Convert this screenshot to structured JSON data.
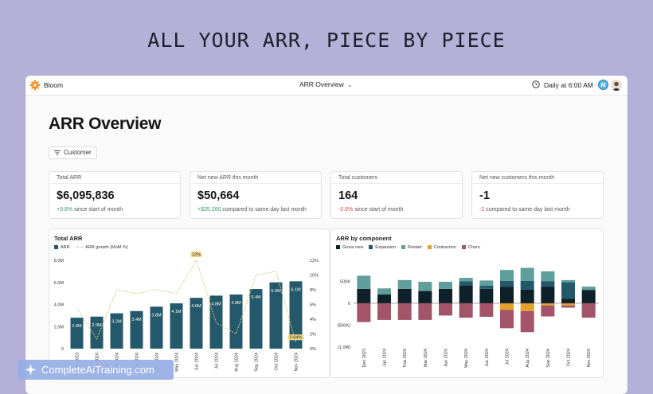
{
  "headline": "ALL YOUR ARR, PIECE BY PIECE",
  "app": {
    "brand": "Bloom",
    "view_selector": "ARR Overview",
    "schedule": "Daily at 6:00 AM",
    "avatar_initial": "M"
  },
  "page": {
    "title": "ARR Overview",
    "filter_label": "Customer"
  },
  "kpis": [
    {
      "label": "Total ARR",
      "value": "$6,095,836",
      "delta": "+0.8%",
      "delta_kind": "pos",
      "note": "since start of month"
    },
    {
      "label": "Net new ARR this month",
      "value": "$50,664",
      "delta": "+$35,260",
      "delta_kind": "pos",
      "note": "compared to same day last month"
    },
    {
      "label": "Total customers",
      "value": "164",
      "delta": "-0.6%",
      "delta_kind": "neg",
      "note": "since start of month"
    },
    {
      "label": "Net new customers this month",
      "value": "-1",
      "delta": "-2",
      "delta_kind": "neg",
      "note": "compared to same day last month"
    }
  ],
  "colors": {
    "arr_bar": "#23596a",
    "growth_line": "#d9c784",
    "gross_new": "#0e2029",
    "expansion": "#23596a",
    "restart": "#5f9e9a",
    "contraction": "#e3a12c",
    "churn": "#a35469"
  },
  "chart_data": [
    {
      "type": "bar",
      "title": "Total ARR",
      "legend": [
        "ARR",
        "ARR growth (MoM %)"
      ],
      "categories": [
        "Dec 2023",
        "Jan 2024",
        "Feb 2024",
        "Mar 2024",
        "Apr 2024",
        "May 2024",
        "Jun 2024",
        "Jul 2024",
        "Aug 2024",
        "Sep 2024",
        "Oct 2024",
        "Nov 2024"
      ],
      "values": [
        2.8,
        2.9,
        3.2,
        3.4,
        3.8,
        4.1,
        4.6,
        4.8,
        4.9,
        5.4,
        6.0,
        6.1
      ],
      "bar_labels": [
        "2.8M",
        "2.9M",
        "3.2M",
        "3.4M",
        "3.8M",
        "4.1M",
        "4.6M",
        "4.8M",
        "4.9M",
        "5.4M",
        "6.0M",
        "6.1M"
      ],
      "growth_pct": [
        5.5,
        1.3,
        8.0,
        7.5,
        8.0,
        7.5,
        12,
        3.5,
        2.0,
        10.0,
        10.5,
        0.84
      ],
      "growth_highlight_labels": {
        "6": "12%",
        "11": "0.84%"
      },
      "ylim": [
        0,
        8
      ],
      "y_ticks": [
        "0",
        "2.0M",
        "4.0M",
        "6.0M",
        "8.0M"
      ],
      "y2lim": [
        0,
        12
      ],
      "y2_ticks": [
        "0%",
        "2%",
        "4%",
        "6%",
        "8%",
        "10%",
        "12%"
      ]
    },
    {
      "type": "bar",
      "stacked": true,
      "title": "ARR by component",
      "categories": [
        "Dec 2023",
        "Jan 2024",
        "Feb 2024",
        "Mar 2024",
        "Apr 2024",
        "May 2024",
        "Jun 2024",
        "Jul 2024",
        "Aug 2024",
        "Sep 2024",
        "Oct 2024",
        "Nov 2024"
      ],
      "ylim": [
        -1000,
        1000
      ],
      "y_ticks": [
        "(1.0M)",
        "(500K)",
        "0",
        "500K"
      ],
      "series": [
        {
          "name": "Gross new",
          "values": [
            330,
            200,
            330,
            280,
            330,
            400,
            330,
            380,
            310,
            380,
            100,
            300
          ]
        },
        {
          "name": "Expansion",
          "values": [
            0,
            0,
            0,
            0,
            0,
            100,
            70,
            130,
            200,
            120,
            380,
            0
          ]
        },
        {
          "name": "Restart",
          "values": [
            300,
            140,
            200,
            210,
            160,
            80,
            120,
            250,
            300,
            230,
            50,
            80
          ]
        },
        {
          "name": "Contraction",
          "values": [
            0,
            0,
            0,
            0,
            0,
            0,
            0,
            -150,
            -180,
            -50,
            -50,
            0
          ]
        },
        {
          "name": "Churn",
          "values": [
            -430,
            -380,
            -380,
            -380,
            -280,
            -330,
            -310,
            -420,
            -480,
            -250,
            -50,
            -330
          ]
        }
      ]
    }
  ],
  "watermark": "CompleteAiTraining.com"
}
